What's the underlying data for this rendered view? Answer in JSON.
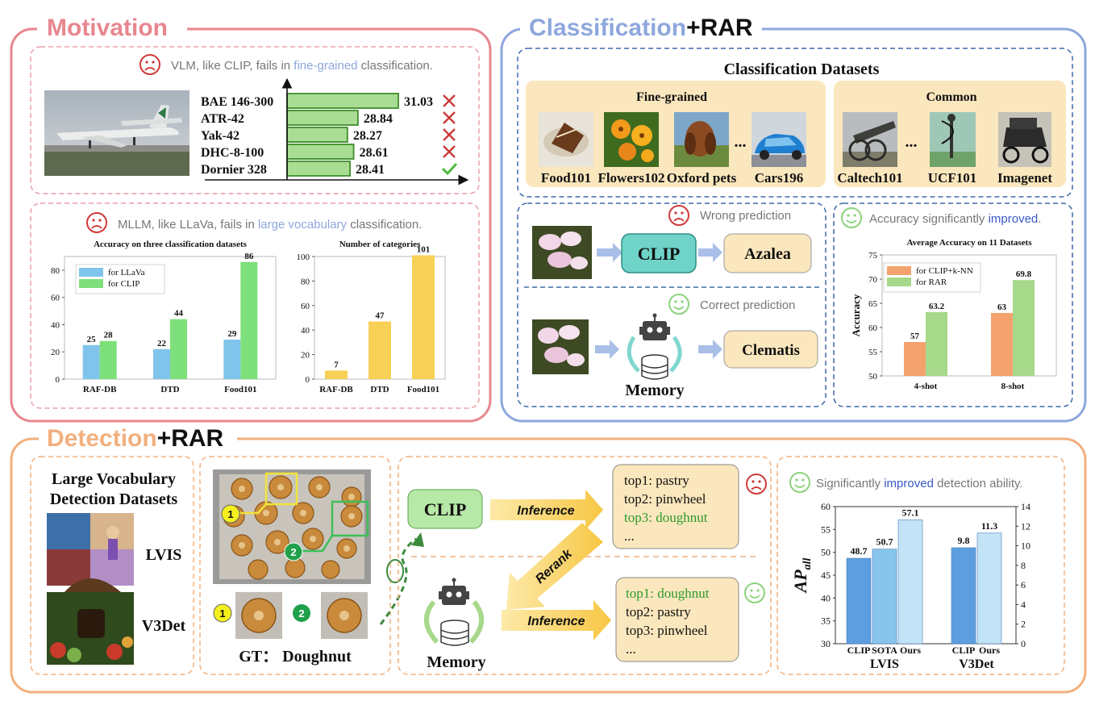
{
  "sections": {
    "motivation": {
      "title": "Motivation",
      "color": "#e8868f"
    },
    "classification": {
      "title_a": "Classification",
      "title_b": "+RAR",
      "color": "#8ea7dd"
    },
    "detection": {
      "title_a": "Detection",
      "title_b": "+RAR",
      "color": "#f2b07e"
    }
  },
  "motivation": {
    "vlm": {
      "pre": "VLM, like CLIP, fails in ",
      "hl": "fine-grained",
      "post": " classification."
    },
    "mllm": {
      "pre": "MLLM, like LLaVa, fails in ",
      "hl": "large vocabulary",
      "post": " classification."
    }
  },
  "classification": {
    "datasets_title": "Classification Datasets",
    "fine_grained_title": "Fine-grained",
    "common_title": "Common",
    "fine_grained": [
      "Food101",
      "Flowers102",
      "Oxford pets",
      "Cars196"
    ],
    "common": [
      "Caltech101",
      "UCF101",
      "Imagenet"
    ],
    "ellipsis": "...",
    "wrong_prediction": "Wrong prediction",
    "correct_prediction": "Correct prediction",
    "clip": "CLIP",
    "wrong_label": "Azalea",
    "right_label": "Clematis",
    "memory": "Memory",
    "improved": {
      "pre": "Accuracy significantly ",
      "hl": "improved",
      "post": "."
    }
  },
  "detection": {
    "datasets_title_1": "Large Vocabulary",
    "datasets_title_2": "Detection Datasets",
    "lvis": "LVIS",
    "v3det": "V3Det",
    "gt": "GT： Doughnut",
    "marker_1": "1",
    "marker_2": "2",
    "clip": "CLIP",
    "inference": "Inference",
    "rerank": "Rerank",
    "memory": "Memory",
    "top_before": [
      {
        "text": "top1: pastry",
        "highlight": false
      },
      {
        "text": "top2: pinwheel",
        "highlight": false
      },
      {
        "text": "top3: doughnut",
        "highlight": true
      },
      {
        "text": "...",
        "highlight": false
      }
    ],
    "top_after": [
      {
        "text": "top1: doughnut",
        "highlight": true
      },
      {
        "text": "top2: pastry",
        "highlight": false
      },
      {
        "text": "top3: pinwheel",
        "highlight": false
      },
      {
        "text": "...",
        "highlight": false
      }
    ],
    "improved": {
      "pre": "Significantly ",
      "hl": "improved",
      "post": " detection ability."
    }
  },
  "chart_data": [
    {
      "id": "aircraft",
      "type": "bar",
      "orientation": "horizontal",
      "categories": [
        "BAE 146-300",
        "ATR-42",
        "Yak-42",
        "DHC-8-100",
        "Dornier 328"
      ],
      "values": [
        31.03,
        28.84,
        28.27,
        28.61,
        28.41
      ],
      "labels": [
        "31.03",
        "28.84",
        "28.27",
        "28.61",
        "28.41"
      ],
      "correct": [
        false,
        false,
        false,
        false,
        true
      ],
      "xlim": [
        25,
        31.6
      ],
      "colors": {
        "fill": "#a9dd93",
        "stroke": "#3f8c2b",
        "wrong": "#cc3a3a",
        "right": "#4cbb3c"
      }
    },
    {
      "id": "accuracy-three",
      "type": "bar",
      "title": "Accuracy on three classification datasets",
      "categories": [
        "RAF-DB",
        "DTD",
        "Food101"
      ],
      "series": [
        {
          "name": "for LLaVa",
          "values": [
            25,
            22,
            29
          ],
          "color": "#7fc4ea"
        },
        {
          "name": "for CLIP",
          "values": [
            28,
            44,
            86
          ],
          "color": "#7ee07b"
        }
      ],
      "ylim": [
        0,
        90
      ],
      "yticks": [
        "0",
        "20",
        "40",
        "60",
        "80"
      ],
      "legend": "top-left"
    },
    {
      "id": "num-categories",
      "type": "bar",
      "title": "Number of categories",
      "categories": [
        "RAF-DB",
        "DTD",
        "Food101"
      ],
      "values": [
        7,
        47,
        101
      ],
      "ylim": [
        0,
        100
      ],
      "yticks": [
        "0",
        "20",
        "40",
        "60",
        "80",
        "100"
      ],
      "color": "#f8d055"
    },
    {
      "id": "avg-accuracy",
      "type": "bar",
      "title": "Average Accuracy on 11 Datasets",
      "ylabel": "Accuracy",
      "categories": [
        "4-shot",
        "8-shot"
      ],
      "series": [
        {
          "name": "for CLIP+k-NN",
          "values": [
            57,
            63
          ],
          "labels": [
            "57",
            "63"
          ],
          "color": "#f3a26e"
        },
        {
          "name": "for RAR",
          "values": [
            63.2,
            69.8
          ],
          "labels": [
            "63.2",
            "69.8"
          ],
          "color": "#a6d98a"
        }
      ],
      "ylim": [
        50,
        75
      ],
      "yticks": [
        "50",
        "55",
        "60",
        "65",
        "70",
        "75"
      ],
      "legend": "top-left"
    },
    {
      "id": "ap-all",
      "type": "bar",
      "ylabel": "AP_all",
      "groups": [
        {
          "name": "LVIS",
          "axis": "left",
          "bars": [
            {
              "name": "CLIP",
              "value": 48.7,
              "label": "48.7",
              "color": "#5d9ee0"
            },
            {
              "name": "SOTA",
              "value": 50.7,
              "label": "50.7",
              "color": "#88c4ec"
            },
            {
              "name": "Ours",
              "value": 57.1,
              "label": "57.1",
              "color": "#c3e3f7"
            }
          ]
        },
        {
          "name": "V3Det",
          "axis": "right",
          "bars": [
            {
              "name": "CLIP",
              "value": 9.8,
              "label": "9.8",
              "color": "#5d9ee0"
            },
            {
              "name": "Ours",
              "value": 11.3,
              "label": "11.3",
              "color": "#c3e3f7"
            }
          ]
        }
      ],
      "ylim_left": [
        30,
        60
      ],
      "ylim_right": [
        0,
        14
      ],
      "yticks_left": [
        "30",
        "35",
        "40",
        "45",
        "50",
        "55",
        "60"
      ],
      "yticks_right": [
        "0",
        "2",
        "4",
        "6",
        "8",
        "10",
        "12",
        "14"
      ]
    }
  ]
}
